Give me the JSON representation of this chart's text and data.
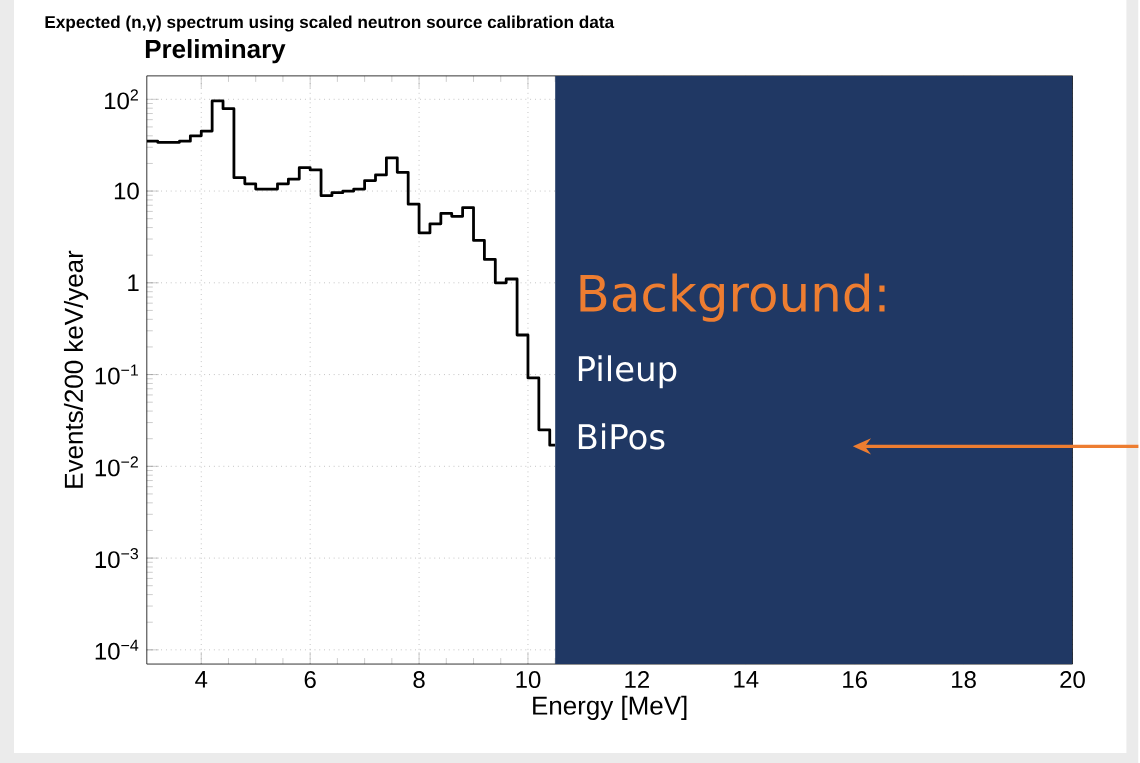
{
  "chart_data": {
    "type": "histogram",
    "title": "Expected (n,γ) spectrum using scaled neutron source calibration data",
    "subtitle": "Preliminary",
    "xlabel": "Energy [MeV]",
    "ylabel": "Events/200 keV/year",
    "bins": [
      3.0,
      3.2,
      3.4,
      3.6,
      3.8,
      4.0,
      4.2,
      4.4,
      4.6,
      4.8,
      5.0,
      5.2,
      5.4,
      5.6,
      5.8,
      6.0,
      6.2,
      6.4,
      6.6,
      6.8,
      7.0,
      7.2,
      7.4,
      7.6,
      7.8,
      8.0,
      8.2,
      8.4,
      8.6,
      8.8,
      9.0,
      9.2,
      9.4,
      9.6,
      9.8,
      10.0,
      10.2,
      10.4,
      10.5
    ],
    "values": [
      35,
      34,
      34,
      35,
      40,
      45,
      96,
      79,
      14,
      12,
      10.5,
      10.5,
      12,
      13.5,
      18,
      17,
      8.9,
      9.6,
      10,
      10.5,
      13,
      15,
      23,
      16,
      7.2,
      3.5,
      4.4,
      5.7,
      5.3,
      6.6,
      2.9,
      1.8,
      1.0,
      1.1,
      0.27,
      0.092,
      0.025,
      0.017
    ],
    "color": "#000000",
    "log": true,
    "grid": true,
    "xlim": [
      3,
      20
    ],
    "ylim": [
      7e-05,
      180
    ],
    "xticks": [
      4,
      6,
      8,
      10,
      12,
      14,
      16,
      18,
      20
    ],
    "yticks": [
      {
        "value": 0.0001,
        "label": "10$^{−4}$"
      },
      {
        "value": 0.001,
        "label": "10$^{−3}$"
      },
      {
        "value": 0.01,
        "label": "10$^{−2}$"
      },
      {
        "value": 0.1,
        "label": "10$^{−1}$"
      },
      1,
      10,
      {
        "value": 100,
        "label": "10$^{2}$"
      }
    ],
    "bands": [
      {
        "axis": "x",
        "from": 10.5,
        "to": 20,
        "label": "Background:",
        "color": "#203864"
      }
    ],
    "annotations": [
      "Pileup",
      "BiPos"
    ]
  }
}
